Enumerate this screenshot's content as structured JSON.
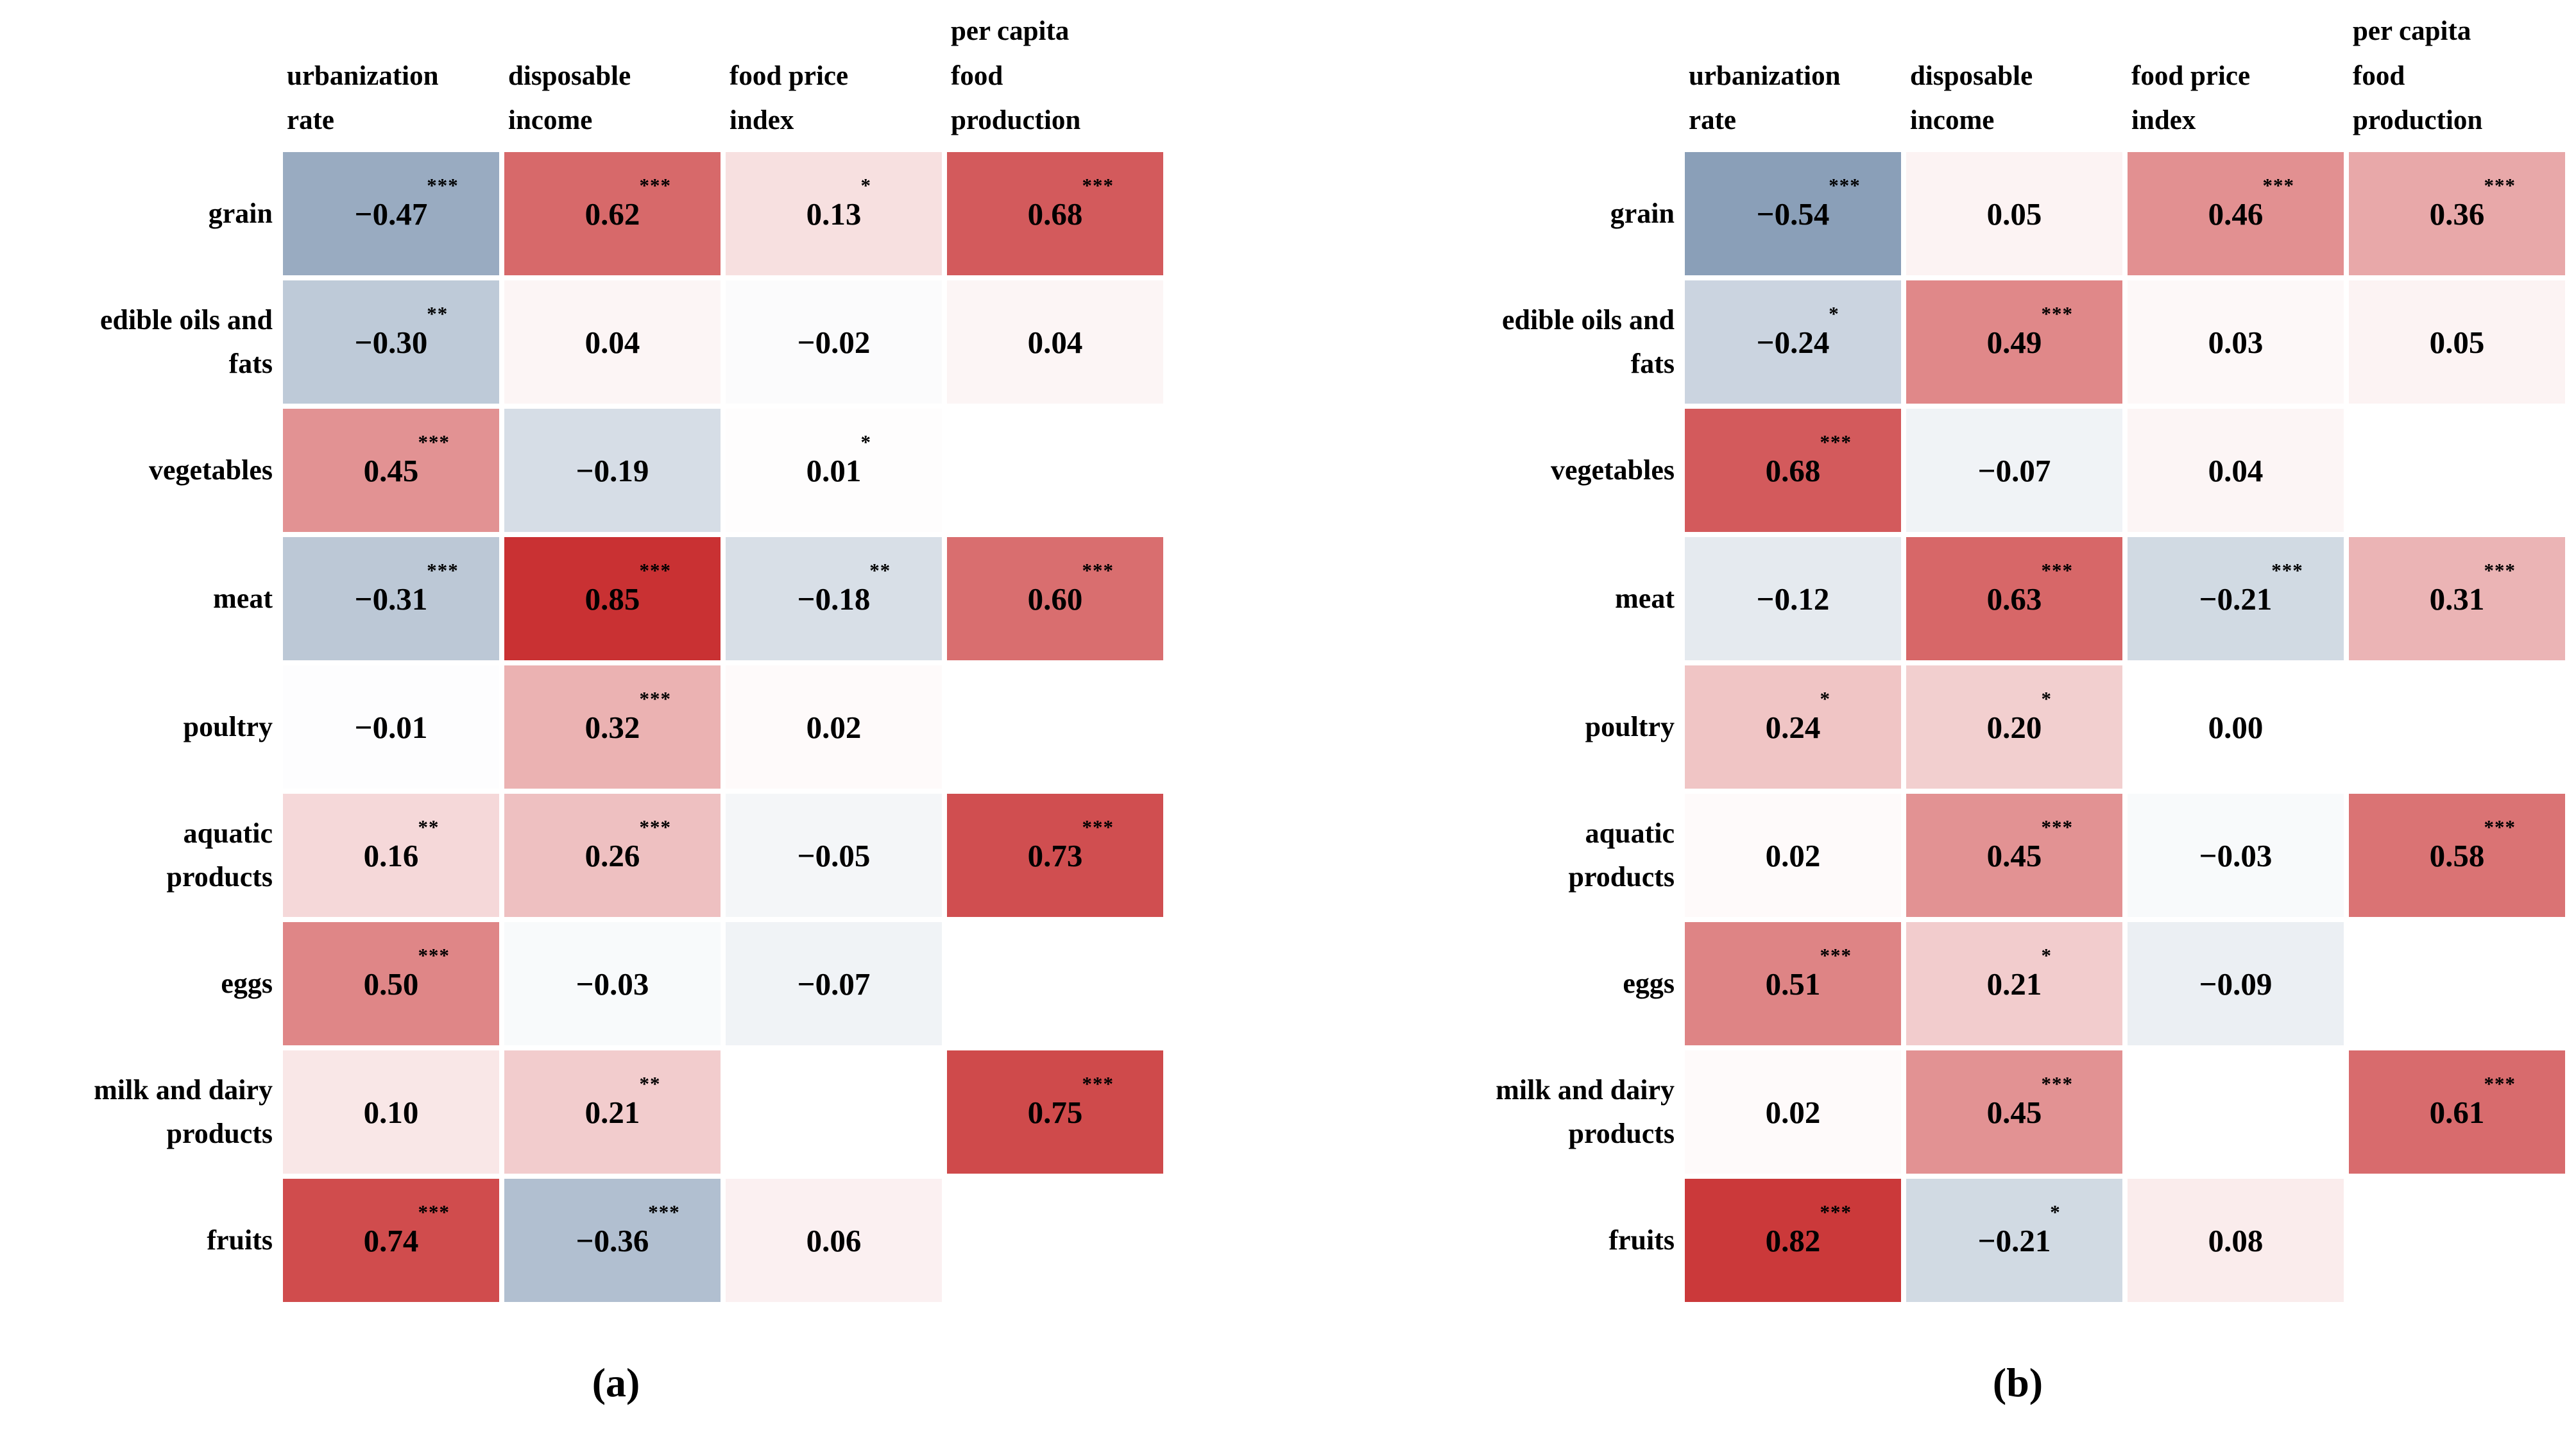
{
  "figure_title": "",
  "colormap": {
    "positive_end": "#bf0d0f",
    "negative_end": "#264d7c",
    "background": "#ffffff"
  },
  "significance_marks": [
    "*",
    "**",
    "***"
  ],
  "chart_data": [
    {
      "type": "heatmap",
      "panel_label": "(a)",
      "value_range": [
        -1,
        1
      ],
      "grid": false,
      "legend_position": "none",
      "columns": [
        {
          "label": "urbanization rate",
          "lines": [
            "urbanization",
            "rate"
          ]
        },
        {
          "label": "disposable income",
          "lines": [
            "disposable",
            "income"
          ]
        },
        {
          "label": "food price index",
          "lines": [
            "food price",
            "index"
          ]
        },
        {
          "label": "per capita food production",
          "lines": [
            "per capita",
            "food",
            "production"
          ]
        }
      ],
      "rows": [
        {
          "label": "grain",
          "lines": [
            "grain"
          ]
        },
        {
          "label": "edible oils and fats",
          "lines": [
            "edible oils and",
            "fats"
          ]
        },
        {
          "label": "vegetables",
          "lines": [
            "vegetables"
          ]
        },
        {
          "label": "meat",
          "lines": [
            "meat"
          ]
        },
        {
          "label": "poultry",
          "lines": [
            "poultry"
          ]
        },
        {
          "label": "aquatic products",
          "lines": [
            "aquatic",
            "products"
          ]
        },
        {
          "label": "eggs",
          "lines": [
            "eggs"
          ]
        },
        {
          "label": "milk and dairy products",
          "lines": [
            "milk and dairy",
            "products"
          ]
        },
        {
          "label": "fruits",
          "lines": [
            "fruits"
          ]
        }
      ],
      "cells": [
        [
          {
            "value": -0.47,
            "stars": "***"
          },
          {
            "value": 0.62,
            "stars": "***"
          },
          {
            "value": 0.13,
            "stars": "*"
          },
          {
            "value": 0.68,
            "stars": "***"
          }
        ],
        [
          {
            "value": -0.3,
            "stars": "**"
          },
          {
            "value": 0.04,
            "stars": ""
          },
          {
            "value": -0.02,
            "stars": ""
          },
          {
            "value": 0.04,
            "stars": ""
          }
        ],
        [
          {
            "value": 0.45,
            "stars": "***"
          },
          {
            "value": -0.19,
            "stars": ""
          },
          {
            "value": 0.01,
            "stars": "*"
          },
          null
        ],
        [
          {
            "value": -0.31,
            "stars": "***"
          },
          {
            "value": 0.85,
            "stars": "***"
          },
          {
            "value": -0.18,
            "stars": "**"
          },
          {
            "value": 0.6,
            "stars": "***"
          }
        ],
        [
          {
            "value": -0.01,
            "stars": ""
          },
          {
            "value": 0.32,
            "stars": "***"
          },
          {
            "value": 0.02,
            "stars": ""
          },
          null
        ],
        [
          {
            "value": 0.16,
            "stars": "**"
          },
          {
            "value": 0.26,
            "stars": "***"
          },
          {
            "value": -0.05,
            "stars": ""
          },
          {
            "value": 0.73,
            "stars": "***"
          }
        ],
        [
          {
            "value": 0.5,
            "stars": "***"
          },
          {
            "value": -0.03,
            "stars": ""
          },
          {
            "value": -0.07,
            "stars": ""
          },
          null
        ],
        [
          {
            "value": 0.1,
            "stars": ""
          },
          {
            "value": 0.21,
            "stars": "**"
          },
          null,
          {
            "value": 0.75,
            "stars": "***"
          }
        ],
        [
          {
            "value": 0.74,
            "stars": "***"
          },
          {
            "value": -0.36,
            "stars": "***"
          },
          {
            "value": 0.06,
            "stars": ""
          },
          null
        ]
      ]
    },
    {
      "type": "heatmap",
      "panel_label": "(b)",
      "value_range": [
        -1,
        1
      ],
      "grid": false,
      "legend_position": "none",
      "columns": [
        {
          "label": "urbanization rate",
          "lines": [
            "urbanization",
            "rate"
          ]
        },
        {
          "label": "disposable income",
          "lines": [
            "disposable",
            "income"
          ]
        },
        {
          "label": "food price index",
          "lines": [
            "food price",
            "index"
          ]
        },
        {
          "label": "per capita food production",
          "lines": [
            "per capita",
            "food",
            "production"
          ]
        }
      ],
      "rows": [
        {
          "label": "grain",
          "lines": [
            "grain"
          ]
        },
        {
          "label": "edible oils and fats",
          "lines": [
            "edible oils and",
            "fats"
          ]
        },
        {
          "label": "vegetables",
          "lines": [
            "vegetables"
          ]
        },
        {
          "label": "meat",
          "lines": [
            "meat"
          ]
        },
        {
          "label": "poultry",
          "lines": [
            "poultry"
          ]
        },
        {
          "label": "aquatic products",
          "lines": [
            "aquatic",
            "products"
          ]
        },
        {
          "label": "eggs",
          "lines": [
            "eggs"
          ]
        },
        {
          "label": "milk and dairy products",
          "lines": [
            "milk and dairy",
            "products"
          ]
        },
        {
          "label": "fruits",
          "lines": [
            "fruits"
          ]
        }
      ],
      "cells": [
        [
          {
            "value": -0.54,
            "stars": "***"
          },
          {
            "value": 0.05,
            "stars": ""
          },
          {
            "value": 0.46,
            "stars": "***"
          },
          {
            "value": 0.36,
            "stars": "***"
          }
        ],
        [
          {
            "value": -0.24,
            "stars": "*"
          },
          {
            "value": 0.49,
            "stars": "***"
          },
          {
            "value": 0.03,
            "stars": ""
          },
          {
            "value": 0.05,
            "stars": ""
          }
        ],
        [
          {
            "value": 0.68,
            "stars": "***"
          },
          {
            "value": -0.07,
            "stars": ""
          },
          {
            "value": 0.04,
            "stars": ""
          },
          null
        ],
        [
          {
            "value": -0.12,
            "stars": ""
          },
          {
            "value": 0.63,
            "stars": "***"
          },
          {
            "value": -0.21,
            "stars": "***"
          },
          {
            "value": 0.31,
            "stars": "***"
          }
        ],
        [
          {
            "value": 0.24,
            "stars": "*"
          },
          {
            "value": 0.2,
            "stars": "*"
          },
          {
            "value": 0.0,
            "stars": ""
          },
          null
        ],
        [
          {
            "value": 0.02,
            "stars": ""
          },
          {
            "value": 0.45,
            "stars": "***"
          },
          {
            "value": -0.03,
            "stars": ""
          },
          {
            "value": 0.58,
            "stars": "***"
          }
        ],
        [
          {
            "value": 0.51,
            "stars": "***"
          },
          {
            "value": 0.21,
            "stars": "*"
          },
          {
            "value": -0.09,
            "stars": ""
          },
          null
        ],
        [
          {
            "value": 0.02,
            "stars": ""
          },
          {
            "value": 0.45,
            "stars": "***"
          },
          null,
          {
            "value": 0.61,
            "stars": "***"
          }
        ],
        [
          {
            "value": 0.82,
            "stars": "***"
          },
          {
            "value": -0.21,
            "stars": "*"
          },
          {
            "value": 0.08,
            "stars": ""
          },
          null
        ]
      ]
    }
  ]
}
